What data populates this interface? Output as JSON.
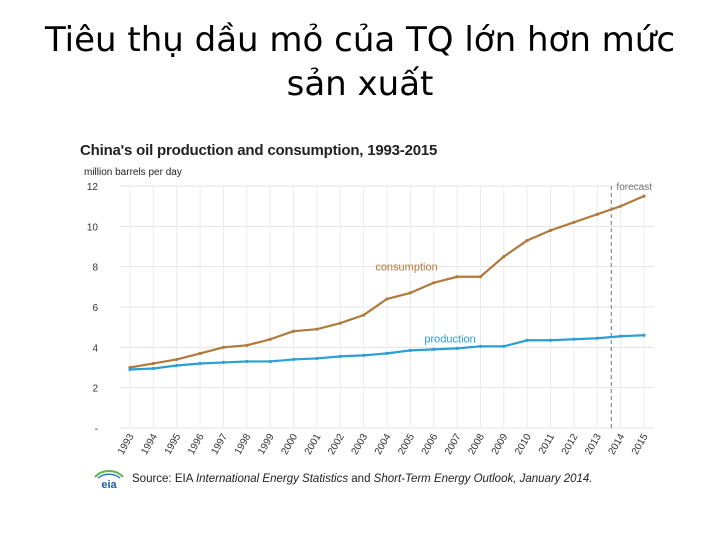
{
  "slide": {
    "title_line1": "Tiêu thụ dầu mỏ của TQ lớn hơn mức",
    "title_line2": "sản xuất"
  },
  "chart_data": {
    "type": "line",
    "title": "China's oil production and consumption, 1993-2015",
    "ylabel": "million barrels per day",
    "ylim": [
      0,
      12
    ],
    "yticks": [
      "-",
      "2",
      "4",
      "6",
      "8",
      "10",
      "12"
    ],
    "x": [
      1993,
      1994,
      1995,
      1996,
      1997,
      1998,
      1999,
      2000,
      2001,
      2002,
      2003,
      2004,
      2005,
      2006,
      2007,
      2008,
      2009,
      2010,
      2011,
      2012,
      2013,
      2014,
      2015
    ],
    "categories": [
      "1993",
      "1994",
      "1995",
      "1996",
      "1997",
      "1998",
      "1999",
      "2000",
      "2001",
      "2002",
      "2003",
      "2004",
      "2005",
      "2006",
      "2007",
      "2008",
      "2009",
      "2010",
      "2011",
      "2012",
      "2013",
      "2014",
      "2015"
    ],
    "series": [
      {
        "name": "consumption",
        "color": "#b07a3c",
        "values": [
          3.0,
          3.2,
          3.4,
          3.7,
          4.0,
          4.1,
          4.4,
          4.8,
          4.9,
          5.2,
          5.6,
          6.4,
          6.7,
          7.2,
          7.5,
          7.5,
          8.5,
          9.3,
          9.8,
          10.2,
          10.6,
          11.0,
          11.5
        ]
      },
      {
        "name": "production",
        "color": "#2a9fd6",
        "values": [
          2.9,
          2.95,
          3.1,
          3.2,
          3.25,
          3.3,
          3.3,
          3.4,
          3.45,
          3.55,
          3.6,
          3.7,
          3.85,
          3.9,
          3.95,
          4.05,
          4.05,
          4.35,
          4.35,
          4.4,
          4.45,
          4.55,
          4.6
        ]
      }
    ],
    "forecast_start": 2013.6,
    "forecast_label": "forecast",
    "grid": true,
    "source_prefix": "Source: EIA",
    "source_italic": "International Energy Statistics",
    "source_middle": "and",
    "source_italic2": "Short-Term Energy Outlook,",
    "source_suffix": "January 2014."
  },
  "logo": {
    "text": "eia"
  }
}
